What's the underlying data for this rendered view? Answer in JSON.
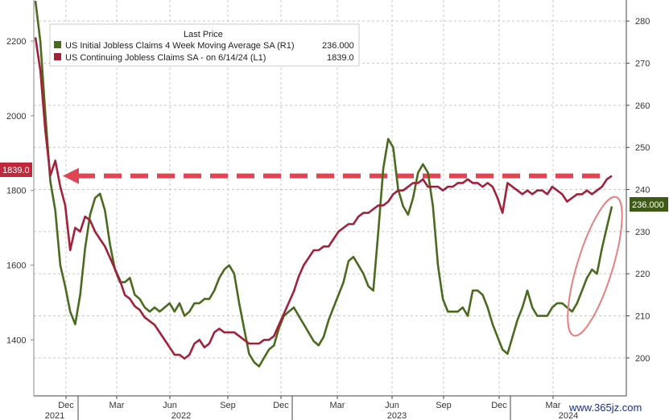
{
  "chart_data": {
    "type": "line",
    "legend_title": "Last Price",
    "legend_position": "top-left",
    "grid": true,
    "x_tick_labels": [
      "Dec",
      "Mar",
      "Jun",
      "Sep",
      "Dec",
      "Mar",
      "Jun",
      "Sep",
      "Dec",
      "Mar"
    ],
    "year_labels": [
      "2021",
      "2022",
      "2023",
      "2024"
    ],
    "left_axis": {
      "ticks": [
        1400,
        1600,
        1800,
        2000,
        2200
      ],
      "range": [
        1250,
        2310
      ]
    },
    "right_axis": {
      "ticks": [
        200,
        210,
        220,
        230,
        240,
        250,
        260,
        270,
        280
      ],
      "range": [
        191,
        285
      ]
    },
    "series": [
      {
        "name": "US Initial Jobless Claims 4 Week Moving Average SA  (R1)",
        "last_value_text": "236.000",
        "axis": "right",
        "color": "#4a6b1e",
        "y": [
          293,
          275,
          258,
          242,
          235,
          222,
          217,
          211,
          208,
          215,
          226,
          234,
          238,
          239,
          235,
          227,
          221,
          218,
          218,
          219,
          215,
          214,
          212,
          211,
          212,
          211,
          212,
          213,
          211,
          213,
          210,
          211,
          213,
          213,
          214,
          214,
          216,
          219,
          221,
          222,
          220,
          213,
          207,
          201,
          199,
          198,
          200,
          202,
          203,
          207,
          210,
          211,
          212,
          210,
          208,
          206,
          204,
          203,
          205,
          209,
          212,
          215,
          218,
          223,
          224,
          222,
          220,
          217,
          216,
          230,
          245,
          252,
          250,
          240,
          236,
          234,
          238,
          244,
          246,
          244,
          236,
          222,
          214,
          211,
          211,
          211,
          212,
          210,
          216,
          216,
          215,
          212,
          208,
          205,
          202,
          201,
          205,
          209,
          212,
          216,
          212,
          210,
          210,
          210,
          212,
          213,
          213,
          212,
          211,
          213,
          216,
          219,
          221,
          220,
          226,
          231,
          236
        ]
      },
      {
        "name": "US Continuing Jobless Claims SA -  on 6/14/24  (L1)",
        "last_value_text": "1839.0",
        "axis": "left",
        "color": "#a3203a",
        "y": [
          2210,
          2120,
          1960,
          1840,
          1880,
          1810,
          1760,
          1640,
          1700,
          1690,
          1730,
          1720,
          1690,
          1670,
          1650,
          1620,
          1590,
          1560,
          1520,
          1510,
          1490,
          1480,
          1460,
          1450,
          1440,
          1420,
          1400,
          1380,
          1360,
          1360,
          1350,
          1360,
          1390,
          1400,
          1380,
          1390,
          1420,
          1430,
          1420,
          1420,
          1420,
          1410,
          1400,
          1390,
          1390,
          1390,
          1400,
          1400,
          1410,
          1440,
          1470,
          1500,
          1530,
          1570,
          1600,
          1620,
          1640,
          1640,
          1650,
          1650,
          1670,
          1690,
          1700,
          1710,
          1710,
          1730,
          1740,
          1740,
          1750,
          1760,
          1760,
          1770,
          1790,
          1800,
          1800,
          1810,
          1820,
          1820,
          1830,
          1810,
          1810,
          1810,
          1800,
          1810,
          1810,
          1820,
          1820,
          1830,
          1820,
          1820,
          1810,
          1820,
          1810,
          1780,
          1740,
          1820,
          1810,
          1800,
          1790,
          1800,
          1790,
          1800,
          1800,
          1790,
          1810,
          1800,
          1790,
          1770,
          1780,
          1790,
          1790,
          1800,
          1790,
          1800,
          1810,
          1830,
          1839
        ]
      }
    ],
    "reference_line_value": 1839
  },
  "watermark": "www.365jz.com"
}
